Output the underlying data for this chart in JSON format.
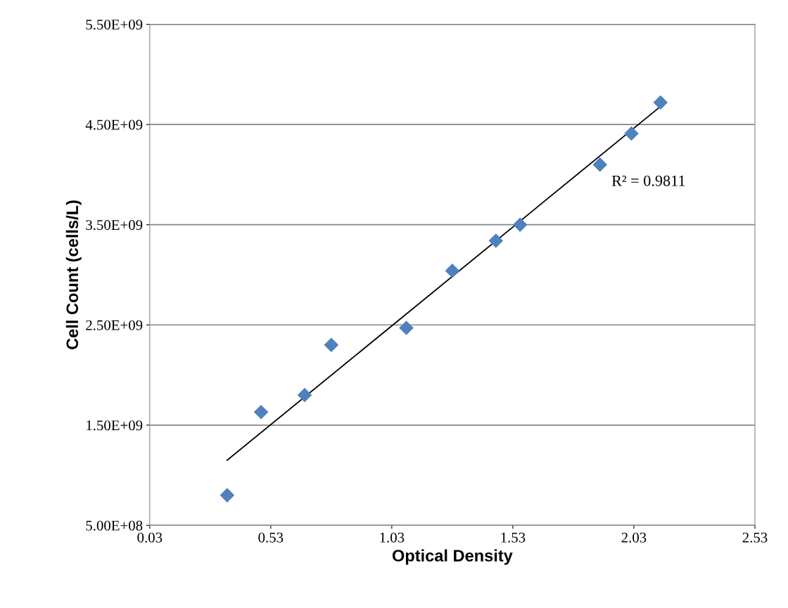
{
  "chart_data": {
    "type": "scatter",
    "xlabel": "Optical Density",
    "ylabel": "Cell Count (cells/L)",
    "xlim": [
      0.03,
      2.53
    ],
    "xticks": [
      0.03,
      0.53,
      1.03,
      1.53,
      2.03,
      2.53
    ],
    "ylim": [
      500000000,
      5500000000
    ],
    "yticks": [
      {
        "value": 500000000,
        "label": "5.00E+08"
      },
      {
        "value": 1500000000,
        "label": "1.50E+09"
      },
      {
        "value": 2500000000,
        "label": "2.50E+09"
      },
      {
        "value": 3500000000,
        "label": "3.50E+09"
      },
      {
        "value": 4500000000,
        "label": "4.50E+09"
      },
      {
        "value": 5500000000,
        "label": "5.50E+09"
      }
    ],
    "grid": "y",
    "series": [
      {
        "marker": "diamond",
        "color": "#4f81bd",
        "x": [
          0.35,
          0.49,
          0.67,
          0.78,
          1.09,
          1.28,
          1.46,
          1.56,
          1.89,
          2.02,
          2.14
        ],
        "values": [
          800000000,
          1630000000,
          1800000000,
          2300000000,
          2470000000,
          3040000000,
          3340000000,
          3500000000,
          4100000000,
          4410000000,
          4720000000
        ]
      },
      {
        "type": "line",
        "color": "#000000",
        "x": [
          0.35,
          2.14
        ],
        "values": [
          1150000000,
          4680000000
        ]
      }
    ],
    "annotations": [
      "R² = 0.9811"
    ]
  }
}
